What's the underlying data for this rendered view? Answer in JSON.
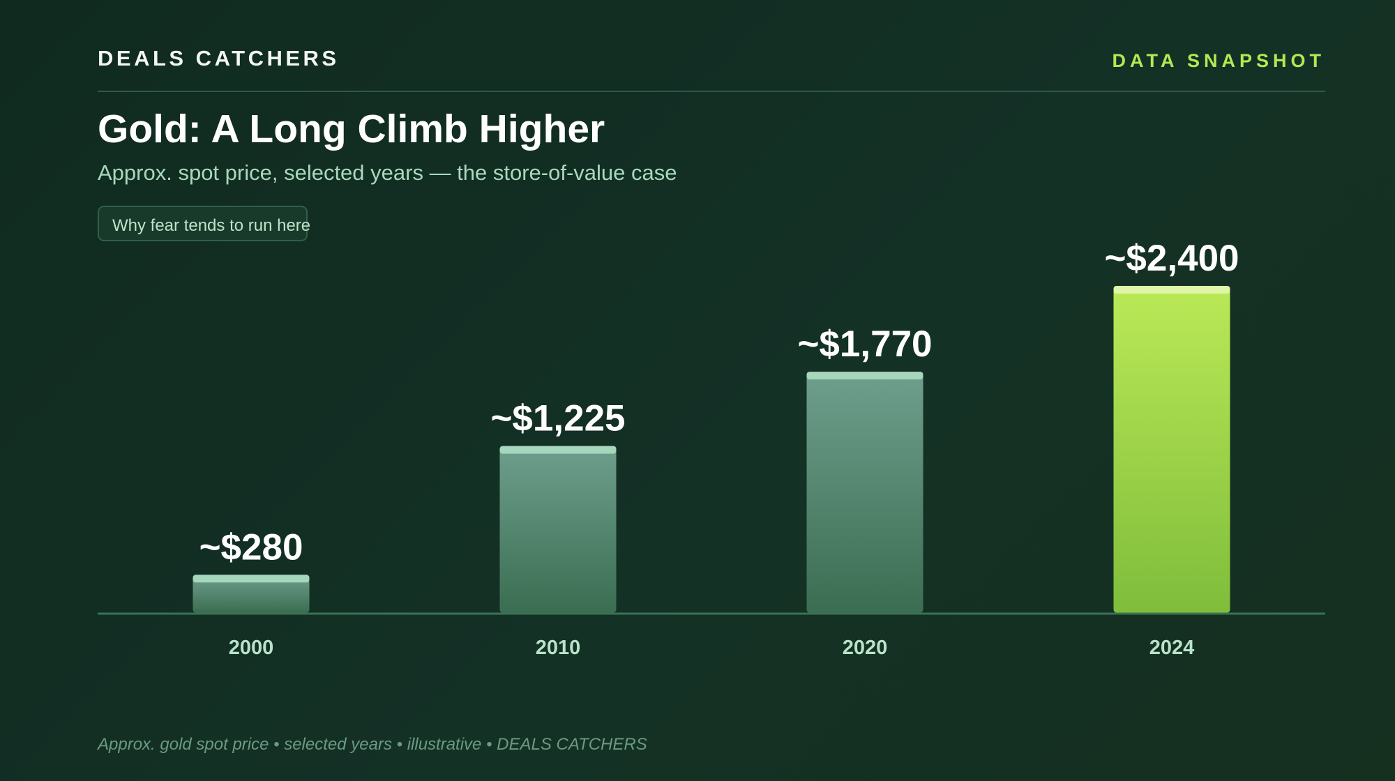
{
  "header": {
    "brand": "DEALS CATCHERS",
    "tag": "DATA SNAPSHOT"
  },
  "pill_label": "Why fear tends to run here",
  "footer_note": "Approx. gold spot price • selected years • illustrative • DEALS CATCHERS",
  "colors": {
    "background": "#12291f",
    "accent": "#b5e853",
    "muted_bar_top": "#6e9f8d",
    "muted_bar_bottom": "#3b6d52",
    "highlight_bar_top": "#bbe957",
    "highlight_bar_bottom": "#7fbd3b"
  },
  "chart_data": {
    "type": "bar",
    "title": "Gold: A Long Climb Higher",
    "subtitle": "Approx. spot price, selected years — the store-of-value case",
    "categories": [
      "2000",
      "2010",
      "2020",
      "2024"
    ],
    "values": [
      280,
      1225,
      1770,
      2400
    ],
    "value_labels": [
      "~$280",
      "~$1,225",
      "~$1,770",
      "~$2,400"
    ],
    "highlight_index": 3,
    "ylim": [
      0,
      2400
    ],
    "grid": false,
    "xlabel": "",
    "ylabel": ""
  }
}
